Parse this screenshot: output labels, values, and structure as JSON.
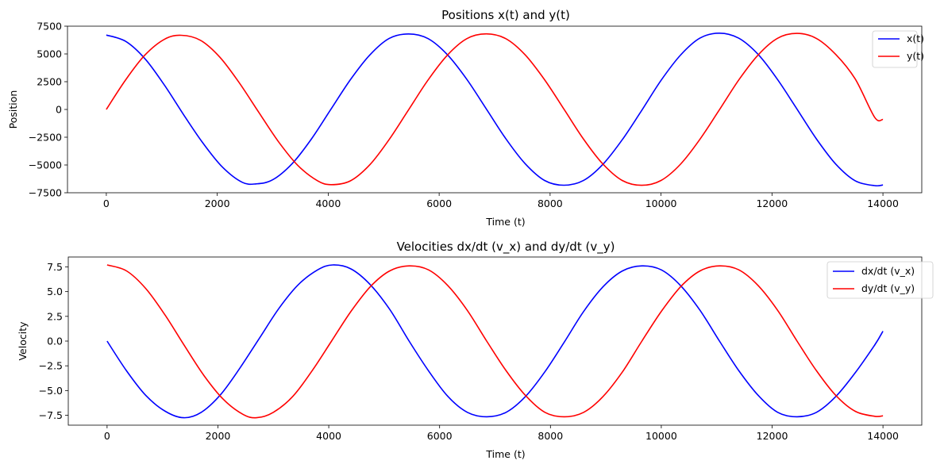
{
  "chart_data": [
    {
      "type": "line",
      "title": "Positions x(t) and y(t)",
      "xlabel": "Time (t)",
      "ylabel": "Position",
      "xlim": [
        -700,
        14700
      ],
      "ylim": [
        -7500,
        7500
      ],
      "xticks": [
        0,
        2000,
        4000,
        6000,
        8000,
        10000,
        12000,
        14000
      ],
      "xtick_labels": [
        "0",
        "2000",
        "4000",
        "6000",
        "8000",
        "10000",
        "12000",
        "14000"
      ],
      "yticks": [
        7500,
        5000,
        2500,
        0,
        -2500,
        -5000,
        -7500
      ],
      "ytick_labels": [
        "7500",
        "5000",
        "2500",
        "0",
        "−2500",
        "−5000",
        "−7500"
      ],
      "grid": false,
      "legend": "top-right",
      "series": [
        {
          "name": "x(t)",
          "color": "#0000ff",
          "x": [
            0,
            350,
            700,
            1050,
            1400,
            1750,
            2100,
            2450,
            2700,
            3000,
            3350,
            3700,
            4050,
            4400,
            4750,
            5100,
            5450,
            5800,
            6150,
            6500,
            6850,
            7200,
            7550,
            7900,
            8250,
            8600,
            8950,
            9300,
            9650,
            10000,
            10350,
            10700,
            11050,
            11400,
            11750,
            12100,
            12450,
            12800,
            13150,
            13500,
            13850,
            14000
          ],
          "y": [
            6700,
            6130,
            4550,
            2170,
            -520,
            -3080,
            -5220,
            -6560,
            -6700,
            -6330,
            -4880,
            -2640,
            30,
            2680,
            4910,
            6400,
            6800,
            6380,
            4920,
            2700,
            50,
            -2620,
            -4880,
            -6390,
            -6820,
            -6400,
            -4950,
            -2730,
            -90,
            2620,
            4890,
            6420,
            6870,
            6420,
            4960,
            2700,
            40,
            -2640,
            -4920,
            -6420,
            -6860,
            -6800
          ]
        },
        {
          "name": "y(t)",
          "color": "#ff0000",
          "x": [
            0,
            350,
            700,
            1050,
            1350,
            1700,
            2050,
            2400,
            2750,
            3100,
            3450,
            3800,
            4050,
            4400,
            4750,
            5100,
            5450,
            5800,
            6150,
            6500,
            6850,
            7200,
            7550,
            7900,
            8250,
            8600,
            8950,
            9300,
            9650,
            10000,
            10350,
            10700,
            11050,
            11400,
            11750,
            12100,
            12450,
            12800,
            13150,
            13500,
            13850,
            14000
          ],
          "y": [
            0,
            2680,
            4920,
            6330,
            6680,
            6220,
            4690,
            2380,
            -270,
            -2880,
            -5030,
            -6400,
            -6770,
            -6430,
            -4980,
            -2700,
            -20,
            2660,
            4900,
            6380,
            6810,
            6380,
            4920,
            2680,
            30,
            -2650,
            -4900,
            -6390,
            -6830,
            -6390,
            -4930,
            -2690,
            -40,
            2650,
            4910,
            6410,
            6850,
            6400,
            4950,
            2740,
            -700,
            -900
          ]
        }
      ]
    },
    {
      "type": "line",
      "title": "Velocities dx/dt (v_x) and dy/dt (v_y)",
      "xlabel": "Time (t)",
      "ylabel": "Velocity",
      "xlim": [
        -700,
        14700
      ],
      "ylim": [
        -8.5,
        8.5
      ],
      "xticks": [
        0,
        2000,
        4000,
        6000,
        8000,
        10000,
        12000,
        14000
      ],
      "xtick_labels": [
        "0",
        "2000",
        "4000",
        "6000",
        "8000",
        "10000",
        "12000",
        "14000"
      ],
      "yticks": [
        7.5,
        5.0,
        2.5,
        0.0,
        -2.5,
        -5.0,
        -7.5
      ],
      "ytick_labels": [
        "7.5",
        "5.0",
        "2.5",
        "0.0",
        "−2.5",
        "−5.0",
        "−7.5"
      ],
      "grid": false,
      "legend": "top-right",
      "series": [
        {
          "name": "dx/dt (v_x)",
          "color": "#0000ff",
          "x": [
            0,
            350,
            700,
            1050,
            1380,
            1700,
            2050,
            2400,
            2750,
            3100,
            3450,
            3800,
            4070,
            4400,
            4750,
            5100,
            5450,
            5800,
            6150,
            6500,
            6850,
            7200,
            7550,
            7900,
            8250,
            8600,
            8950,
            9300,
            9650,
            10000,
            10350,
            10700,
            11050,
            11400,
            11750,
            12100,
            12450,
            12800,
            13150,
            13500,
            13850,
            14000
          ],
          "y": [
            0,
            -3.0,
            -5.5,
            -7.1,
            -7.75,
            -7.2,
            -5.4,
            -2.7,
            0.3,
            3.3,
            5.7,
            7.2,
            7.7,
            7.3,
            5.7,
            3.2,
            0.0,
            -3.0,
            -5.6,
            -7.2,
            -7.65,
            -7.2,
            -5.6,
            -3.1,
            -0.1,
            3.0,
            5.5,
            7.1,
            7.6,
            7.2,
            5.6,
            3.1,
            0.0,
            -3.0,
            -5.5,
            -7.2,
            -7.65,
            -7.2,
            -5.6,
            -3.2,
            -0.4,
            1.0
          ]
        },
        {
          "name": "dy/dt (v_y)",
          "color": "#ff0000",
          "x": [
            0,
            350,
            700,
            1050,
            1400,
            1750,
            2100,
            2450,
            2700,
            3000,
            3350,
            3700,
            4050,
            4400,
            4750,
            5100,
            5450,
            5800,
            6150,
            6500,
            6850,
            7200,
            7550,
            7900,
            8250,
            8600,
            8950,
            9300,
            9650,
            10000,
            10350,
            10700,
            11050,
            11400,
            11750,
            12100,
            12450,
            12800,
            13150,
            13500,
            13850,
            14000
          ],
          "y": [
            7.7,
            7.1,
            5.3,
            2.6,
            -0.5,
            -3.5,
            -5.9,
            -7.4,
            -7.75,
            -7.2,
            -5.6,
            -3.0,
            0.0,
            3.0,
            5.5,
            7.1,
            7.6,
            7.2,
            5.6,
            3.1,
            0.0,
            -3.0,
            -5.5,
            -7.2,
            -7.65,
            -7.2,
            -5.6,
            -3.1,
            0.0,
            3.0,
            5.5,
            7.1,
            7.6,
            7.2,
            5.6,
            3.1,
            0.0,
            -3.0,
            -5.5,
            -7.1,
            -7.6,
            -7.55
          ]
        }
      ]
    }
  ]
}
